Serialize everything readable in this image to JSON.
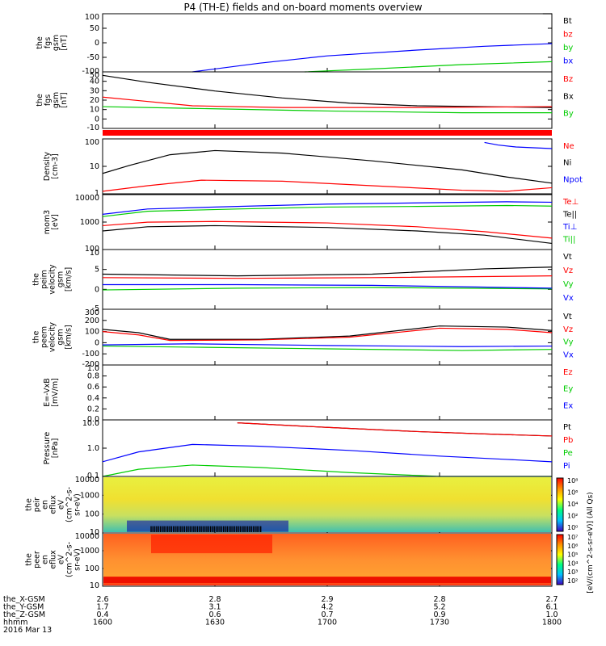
{
  "title": "P4 (TH-E) fields and on-board moments overview",
  "colors": {
    "black": "#000000",
    "red": "#ff0000",
    "green": "#00cc00",
    "blue": "#0000ff"
  },
  "chart_data": {
    "type": "line",
    "time_axis": {
      "ticks": [
        "1600",
        "1630",
        "1700",
        "1730",
        "1800"
      ],
      "rows": [
        {
          "label": "the_X-GSM",
          "values": [
            "2.6",
            "2.8",
            "2.9",
            "2.8",
            "2.7"
          ]
        },
        {
          "label": "the_Y-GSM",
          "values": [
            "1.7",
            "3.1",
            "4.2",
            "5.2",
            "6.1"
          ]
        },
        {
          "label": "the_Z-GSM",
          "values": [
            "0.4",
            "0.6",
            "0.7",
            "0.9",
            "1.0"
          ]
        },
        {
          "label": "hhmm",
          "values": [
            "1600",
            "1630",
            "1700",
            "1730",
            "1800"
          ]
        }
      ],
      "date": "2016 Mar 13"
    },
    "panels": [
      {
        "ylabel": [
          "the",
          "fgs",
          "gsm",
          "[nT]"
        ],
        "yticks": [
          "100",
          "50",
          "0",
          "-50",
          "-100"
        ],
        "legend": [
          {
            "t": "Bt",
            "c": "black"
          },
          {
            "t": "bz",
            "c": "red"
          },
          {
            "t": "by",
            "c": "green"
          },
          {
            "t": "bx",
            "c": "blue"
          }
        ],
        "series": [
          {
            "name": "bx",
            "color": "blue",
            "x": [
              0.2,
              0.35,
              0.5,
              0.7,
              0.85,
              1.0
            ],
            "y": [
              -100,
              -70,
              -45,
              -25,
              -12,
              -3
            ]
          },
          {
            "name": "by",
            "color": "green",
            "x": [
              0.45,
              0.6,
              0.8,
              1.0
            ],
            "y": [
              -100,
              -90,
              -75,
              -65
            ]
          },
          {
            "name": "Bt",
            "color": "black",
            "x": [
              0.98,
              1.0
            ],
            "y": [
              100,
              100
            ]
          }
        ],
        "range": [
          -100,
          100
        ]
      },
      {
        "ylabel": [
          "the",
          "fgs",
          "gsm",
          "[nT]"
        ],
        "yticks": [
          "50",
          "40",
          "30",
          "20",
          "10",
          "0",
          "-10"
        ],
        "legend": [
          {
            "t": "Bz",
            "c": "red"
          },
          {
            "t": "Bx",
            "c": "black"
          },
          {
            "t": "By",
            "c": "green"
          }
        ],
        "series": [
          {
            "name": "Bt",
            "color": "black",
            "x": [
              0,
              0.1,
              0.25,
              0.4,
              0.55,
              0.7,
              0.85,
              1.0
            ],
            "y": [
              46,
              38,
              28,
              20,
              14,
              11,
              10,
              9
            ]
          },
          {
            "name": "Bz",
            "color": "red",
            "x": [
              0,
              0.08,
              0.2,
              0.4,
              0.7,
              1.0
            ],
            "y": [
              21,
              17,
              11,
              9,
              9,
              10
            ]
          },
          {
            "name": "By",
            "color": "green",
            "x": [
              0,
              0.2,
              0.5,
              0.8,
              1.0
            ],
            "y": [
              10,
              8,
              5,
              3,
              3
            ]
          }
        ],
        "range": [
          -15,
          50
        ]
      },
      {
        "ylabel": [
          "Density",
          "[cm-3]"
        ],
        "yticks": [
          "100",
          "10",
          "1"
        ],
        "log": true,
        "legend": [
          {
            "t": "Ne",
            "c": "red"
          },
          {
            "t": "Ni",
            "c": "black"
          },
          {
            "t": "Npot",
            "c": "blue"
          }
        ],
        "series": [
          {
            "name": "Ni",
            "color": "black",
            "x": [
              0,
              0.06,
              0.15,
              0.25,
              0.4,
              0.6,
              0.8,
              0.9,
              1.0
            ],
            "y": [
              6,
              15,
              50,
              80,
              60,
              25,
              9,
              4,
              2
            ]
          },
          {
            "name": "Ne",
            "color": "red",
            "x": [
              0,
              0.1,
              0.22,
              0.4,
              0.6,
              0.8,
              0.9,
              1.0
            ],
            "y": [
              0.8,
              1.5,
              2.8,
              2.5,
              1.5,
              0.9,
              0.8,
              1.2
            ]
          },
          {
            "name": "Npot",
            "color": "blue",
            "x": [
              0.85,
              0.88,
              0.92,
              0.96,
              1.0
            ],
            "y": [
              200,
              150,
              120,
              110,
              100
            ]
          }
        ],
        "range": [
          0.6,
          300
        ]
      },
      {
        "ylabel": [
          "mom3",
          "[eV]"
        ],
        "yticks": [
          "10000",
          "1000",
          "100"
        ],
        "log": true,
        "legend": [
          {
            "t": "Te⊥",
            "c": "red"
          },
          {
            "t": "Te||",
            "c": "black"
          },
          {
            "t": "Ti⊥",
            "c": "blue"
          },
          {
            "t": "Ti||",
            "c": "green"
          }
        ],
        "series": [
          {
            "name": "Ti⊥",
            "color": "blue",
            "x": [
              0,
              0.1,
              0.3,
              0.5,
              0.7,
              0.9,
              1.0
            ],
            "y": [
              1500,
              2500,
              3200,
              4000,
              4500,
              5000,
              4800
            ]
          },
          {
            "name": "Ti||",
            "color": "green",
            "x": [
              0,
              0.1,
              0.3,
              0.5,
              0.7,
              0.9,
              1.0
            ],
            "y": [
              1200,
              2000,
              2500,
              3000,
              3200,
              3500,
              3300
            ]
          },
          {
            "name": "Te⊥",
            "color": "red",
            "x": [
              0,
              0.1,
              0.25,
              0.5,
              0.7,
              0.85,
              1.0
            ],
            "y": [
              500,
              700,
              750,
              650,
              450,
              280,
              150
            ]
          },
          {
            "name": "Te||",
            "color": "black",
            "x": [
              0,
              0.1,
              0.25,
              0.5,
              0.7,
              0.85,
              1.0
            ],
            "y": [
              300,
              450,
              500,
              420,
              300,
              200,
              90
            ]
          }
        ],
        "range": [
          50,
          10000
        ]
      },
      {
        "ylabel": [
          "the",
          "peim",
          "velocity",
          "gsm",
          "[km/s]"
        ],
        "yticks": [
          "10",
          "5",
          "0",
          "-5"
        ],
        "legend": [
          {
            "t": "Vt",
            "c": "black"
          },
          {
            "t": "Vz",
            "c": "red"
          },
          {
            "t": "Vy",
            "c": "green"
          },
          {
            "t": "Vx",
            "c": "blue"
          }
        ],
        "series": [
          {
            "name": "Vt",
            "color": "black",
            "x": [
              0,
              0.3,
              0.6,
              0.85,
              1.0
            ],
            "y": [
              3,
              2.5,
              3,
              4.5,
              5
            ]
          },
          {
            "name": "Vz",
            "color": "red",
            "x": [
              0,
              0.3,
              0.6,
              1.0
            ],
            "y": [
              2,
              1.8,
              2,
              2.5
            ]
          },
          {
            "name": "Vy",
            "color": "green",
            "x": [
              0,
              0.3,
              0.6,
              1.0
            ],
            "y": [
              -1.5,
              -1,
              -0.8,
              -1.2
            ]
          },
          {
            "name": "Vx",
            "color": "blue",
            "x": [
              0,
              0.3,
              0.6,
              1.0
            ],
            "y": [
              0,
              0,
              -0.2,
              -1
            ]
          }
        ],
        "range": [
          -7,
          10
        ]
      },
      {
        "ylabel": [
          "the",
          "peem",
          "velocity",
          "gsm",
          "[km/s]"
        ],
        "yticks": [
          "300",
          "200",
          "100",
          "0",
          "-100",
          "-200"
        ],
        "legend": [
          {
            "t": "Vt",
            "c": "black"
          },
          {
            "t": "Vz",
            "c": "red"
          },
          {
            "t": "Vy",
            "c": "green"
          },
          {
            "t": "Vx",
            "c": "blue"
          }
        ],
        "series": [
          {
            "name": "Vt",
            "color": "black",
            "x": [
              0,
              0.08,
              0.15,
              0.35,
              0.55,
              0.75,
              0.9,
              1.0
            ],
            "y": [
              120,
              90,
              30,
              30,
              60,
              150,
              140,
              110
            ]
          },
          {
            "name": "Vz",
            "color": "red",
            "x": [
              0,
              0.08,
              0.15,
              0.35,
              0.55,
              0.75,
              0.9,
              1.0
            ],
            "y": [
              100,
              70,
              20,
              25,
              50,
              130,
              120,
              90
            ]
          },
          {
            "name": "Vx",
            "color": "blue",
            "x": [
              0,
              0.2,
              0.5,
              0.8,
              1.0
            ],
            "y": [
              -20,
              -10,
              -25,
              -35,
              -30
            ]
          },
          {
            "name": "Vy",
            "color": "green",
            "x": [
              0,
              0.2,
              0.5,
              0.8,
              1.0
            ],
            "y": [
              -30,
              -40,
              -55,
              -70,
              -60
            ]
          }
        ],
        "range": [
          -200,
          300
        ]
      },
      {
        "ylabel": [
          "E=-VxB",
          "[mV/m]"
        ],
        "yticks": [
          "1.0",
          "0.8",
          "0.6",
          "0.4",
          "0.2",
          "0.0"
        ],
        "legend": [
          {
            "t": "Ez",
            "c": "red"
          },
          {
            "t": "Ey",
            "c": "green"
          },
          {
            "t": "Ex",
            "c": "blue"
          }
        ],
        "series": [],
        "range": [
          0,
          1
        ]
      },
      {
        "ylabel": [
          "Pressure",
          "[nPa]"
        ],
        "yticks": [
          "10.0",
          "1.0",
          "0.1"
        ],
        "log": true,
        "legend": [
          {
            "t": "Pt",
            "c": "black"
          },
          {
            "t": "Pb",
            "c": "red"
          },
          {
            "t": "Pe",
            "c": "green"
          },
          {
            "t": "Pi",
            "c": "blue"
          }
        ],
        "series": [
          {
            "name": "Pt",
            "color": "black",
            "x": [
              0.3,
              0.5,
              0.7,
              0.85,
              1.0
            ],
            "y": [
              35,
              20,
              12,
              9,
              7
            ]
          },
          {
            "name": "Pb",
            "color": "red",
            "x": [
              0.3,
              0.5,
              0.7,
              0.85,
              1.0
            ],
            "y": [
              35,
              20,
              12,
              9,
              7
            ]
          },
          {
            "name": "Pi",
            "color": "blue",
            "x": [
              0,
              0.08,
              0.2,
              0.35,
              0.55,
              0.75,
              0.9,
              1.0
            ],
            "y": [
              0.3,
              1,
              2.5,
              2,
              1.2,
              0.6,
              0.4,
              0.3
            ]
          },
          {
            "name": "Pe",
            "color": "green",
            "x": [
              0,
              0.08,
              0.2,
              0.35,
              0.55,
              0.75,
              0.9,
              1.0
            ],
            "y": [
              0.05,
              0.12,
              0.2,
              0.15,
              0.08,
              0.04,
              0.03,
              0.03
            ]
          }
        ],
        "range": [
          0.05,
          50
        ]
      },
      {
        "ylabel": [
          "the",
          "peir",
          "en",
          "eflux",
          "eV",
          "(cm^2-s-",
          "sr-eV)"
        ],
        "yticks": [
          "10000",
          "1000",
          "100",
          "10"
        ],
        "type": "heatmap",
        "colorbar": {
          "label": "[eV/(cm^2-s-sr-eV)] (All Qs)",
          "ticks": [
            "10⁸",
            "10⁶",
            "10⁴",
            "10²",
            "10⁰"
          ]
        }
      },
      {
        "ylabel": [
          "the",
          "peer",
          "en",
          "eflux",
          "eV",
          "(cm^2-s-",
          "sr-eV)"
        ],
        "yticks": [
          "10000",
          "1000",
          "100",
          "10"
        ],
        "type": "heatmap",
        "colorbar": {
          "label": "[eV/(cm^2-s-sr-eV)] (All Qs)",
          "ticks": [
            "10⁷",
            "10⁶",
            "10⁵",
            "10⁴",
            "10³",
            "10²"
          ]
        }
      }
    ]
  }
}
